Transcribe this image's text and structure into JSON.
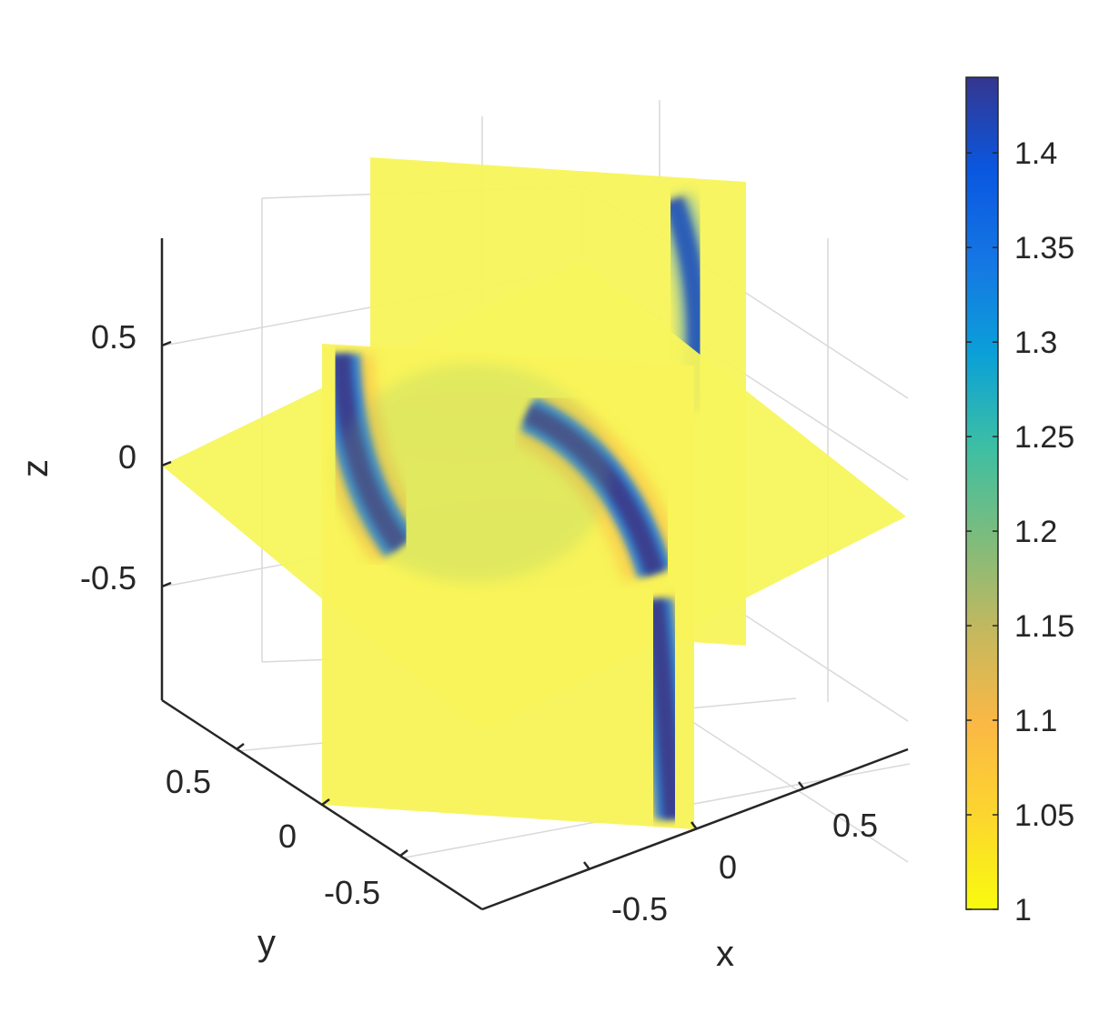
{
  "chart_data": {
    "type": "slice-3d",
    "axes": {
      "x": {
        "label": "x",
        "ticks": [
          "-0.5",
          "0",
          "0.5"
        ],
        "range": [
          -1,
          1
        ]
      },
      "y": {
        "label": "y",
        "ticks": [
          "-0.5",
          "0",
          "0.5"
        ],
        "range": [
          -1,
          1
        ]
      },
      "z": {
        "label": "z",
        "ticks": [
          "-0.5",
          "0",
          "0.5"
        ],
        "range": [
          -1,
          1
        ]
      }
    },
    "slices": [
      {
        "plane": "x",
        "value": 0
      },
      {
        "plane": "y",
        "value": 0
      },
      {
        "plane": "z",
        "value": 0
      }
    ],
    "colorbar": {
      "ticks": [
        "1",
        "1.05",
        "1.1",
        "1.15",
        "1.2",
        "1.25",
        "1.3",
        "1.35",
        "1.4"
      ],
      "range": [
        1,
        1.44
      ],
      "colormap": "parula",
      "colors": [
        "#f9fb0e",
        "#fcd62e",
        "#fbb845",
        "#c5b85e",
        "#7ebc7c",
        "#3dbfa3",
        "#0ba0d8",
        "#1577e4",
        "#0a57e0",
        "#35368f"
      ]
    },
    "grid": true
  }
}
